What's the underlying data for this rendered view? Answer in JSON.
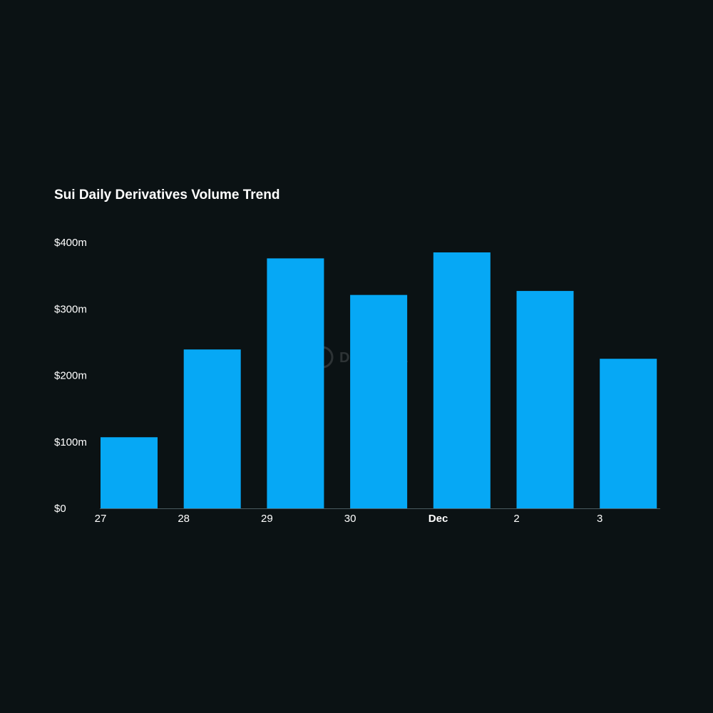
{
  "chart_data": {
    "type": "bar",
    "title": "Sui Daily Derivatives Volume Trend",
    "xlabel": "",
    "ylabel": "",
    "categories": [
      "27",
      "28",
      "29",
      "30",
      "Dec",
      "2",
      "3"
    ],
    "bold_categories": [
      "Dec"
    ],
    "values": [
      107,
      239,
      376,
      321,
      385,
      327,
      225
    ],
    "value_unit": "$m",
    "ylim": [
      0,
      400
    ],
    "yticks": [
      0,
      100,
      200,
      300,
      400
    ],
    "ytick_labels": [
      "$0",
      "$100m",
      "$200m",
      "$300m",
      "$400m"
    ],
    "grid": false,
    "legend": "none",
    "bar_color": "#06a8f5",
    "axis_color": "#4a5a60",
    "background": "#0b1214",
    "watermark": "DefiLlama"
  }
}
